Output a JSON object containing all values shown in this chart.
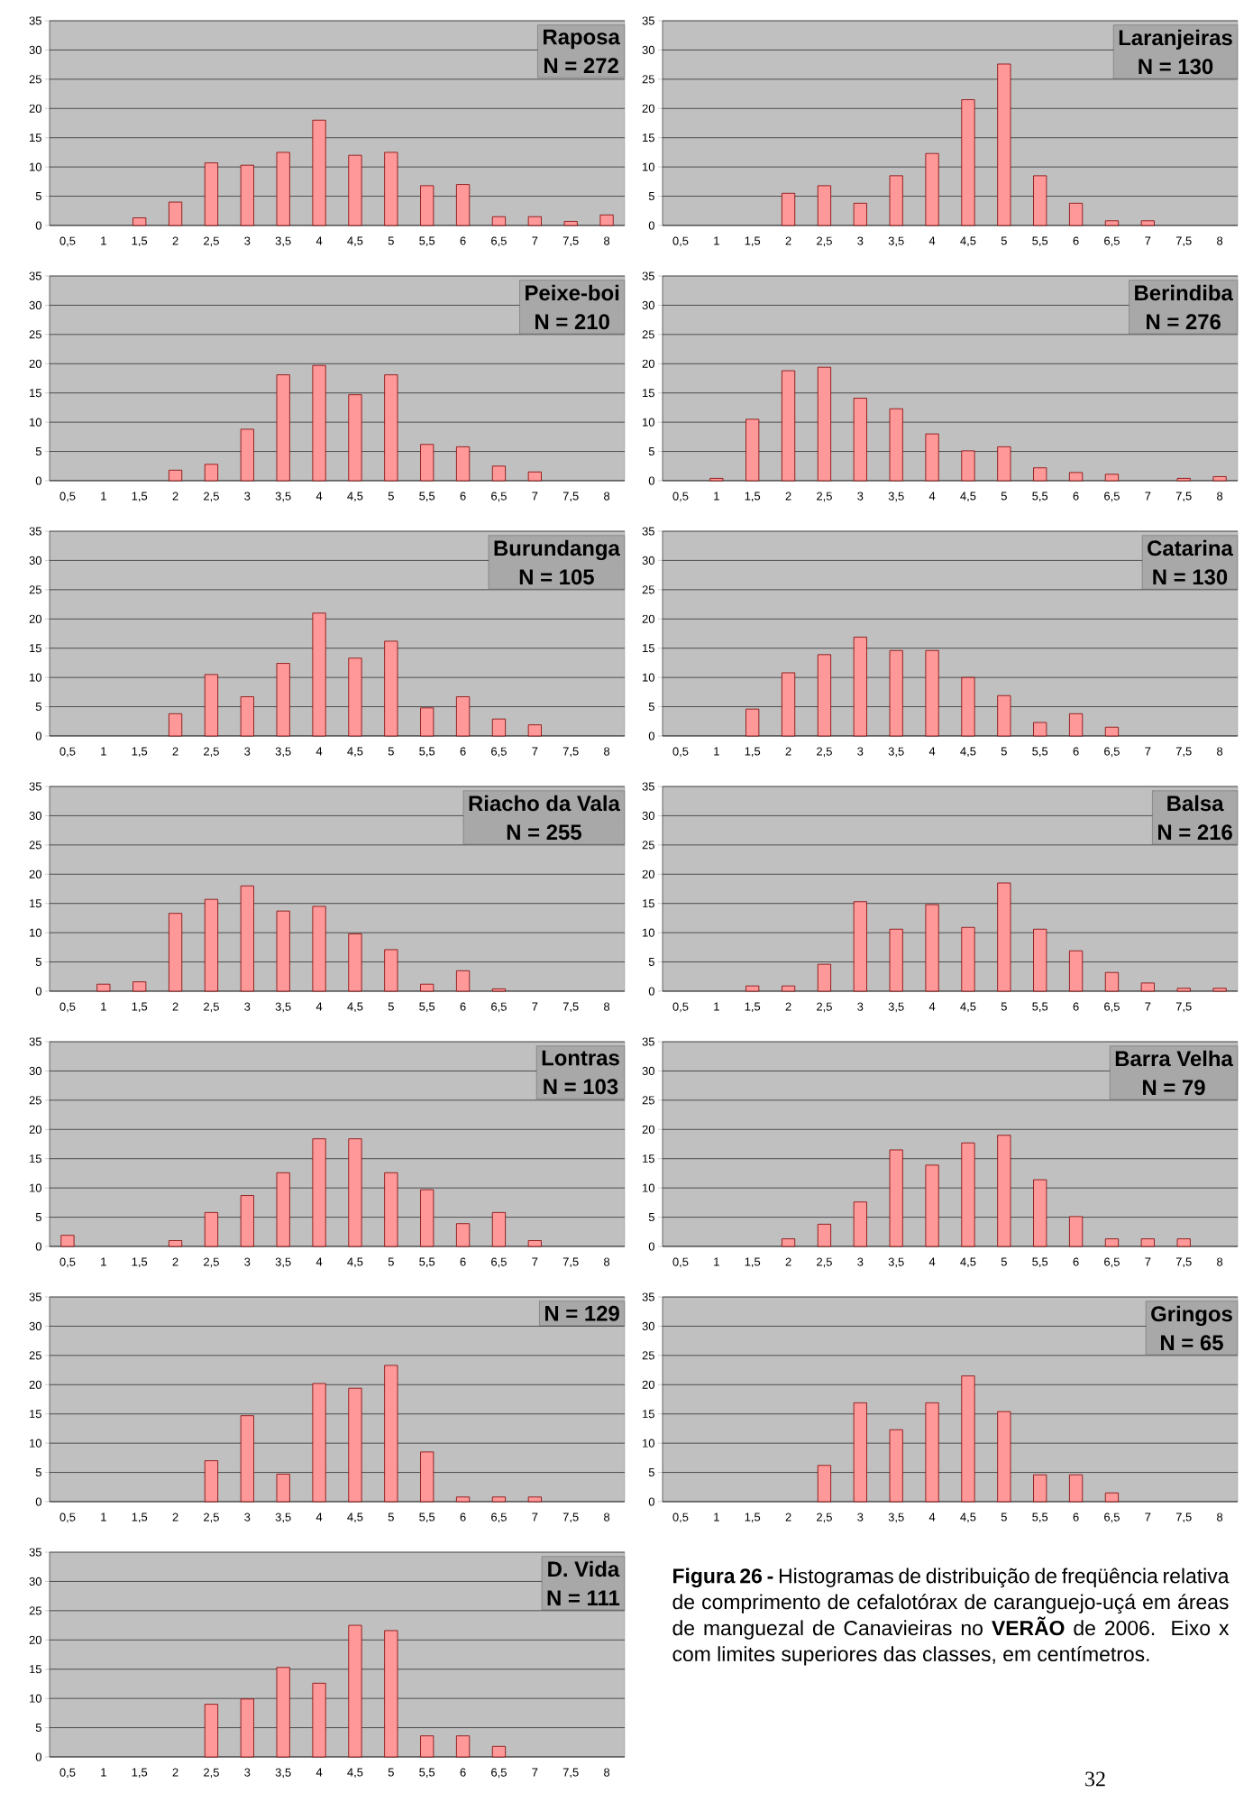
{
  "chart_data": [
    {
      "type": "bar",
      "title": "Raposa",
      "subtitle": "N = 272",
      "categories": [
        "0,5",
        "1",
        "1,5",
        "2",
        "2,5",
        "3",
        "3,5",
        "4",
        "4,5",
        "5",
        "5,5",
        "6",
        "6,5",
        "7",
        "7,5",
        "8"
      ],
      "values": [
        0,
        0,
        1.3,
        4,
        10.7,
        10.3,
        12.5,
        18,
        12,
        12.5,
        6.8,
        7,
        1.5,
        1.5,
        0.7,
        1.8
      ],
      "color": "#ff9999",
      "ylim": [
        0,
        35
      ],
      "yticks": [
        0,
        5,
        10,
        15,
        20,
        25,
        30,
        35
      ],
      "grid": "y"
    },
    {
      "type": "bar",
      "title": "Laranjeiras",
      "subtitle": "N = 130",
      "categories": [
        "0,5",
        "1",
        "1,5",
        "2",
        "2,5",
        "3",
        "3,5",
        "4",
        "4,5",
        "5",
        "5,5",
        "6",
        "6,5",
        "7",
        "7,5",
        "8"
      ],
      "values": [
        0,
        0,
        0,
        5.5,
        6.8,
        3.8,
        8.5,
        12.3,
        21.5,
        27.6,
        8.5,
        3.8,
        0.8,
        0.8,
        0,
        0
      ],
      "color": "#ff9999",
      "ylim": [
        0,
        35
      ],
      "yticks": [
        0,
        5,
        10,
        15,
        20,
        25,
        30,
        35
      ],
      "grid": "y"
    },
    {
      "type": "bar",
      "title": "Peixe-boi",
      "subtitle": "N = 210",
      "categories": [
        "0,5",
        "1",
        "1,5",
        "2",
        "2,5",
        "3",
        "3,5",
        "4",
        "4,5",
        "5",
        "5,5",
        "6",
        "6,5",
        "7",
        "7,5",
        "8"
      ],
      "values": [
        0,
        0,
        0,
        1.8,
        2.8,
        8.8,
        18.1,
        19.7,
        14.7,
        18.1,
        6.2,
        5.8,
        2.5,
        1.5,
        0,
        0
      ],
      "color": "#ff9999",
      "ylim": [
        0,
        35
      ],
      "yticks": [
        0,
        5,
        10,
        15,
        20,
        25,
        30,
        35
      ],
      "grid": "y"
    },
    {
      "type": "bar",
      "title": "Berindiba",
      "subtitle": "N = 276",
      "categories": [
        "0,5",
        "1",
        "1,5",
        "2",
        "2,5",
        "3",
        "3,5",
        "4",
        "4,5",
        "5",
        "5,5",
        "6",
        "6,5",
        "7",
        "7,5",
        "8"
      ],
      "values": [
        0,
        0.4,
        10.5,
        18.8,
        19.4,
        14.1,
        12.3,
        8,
        5.1,
        5.8,
        2.2,
        1.4,
        1.1,
        0,
        0.4,
        0.7
      ],
      "color": "#ff9999",
      "ylim": [
        0,
        35
      ],
      "yticks": [
        0,
        5,
        10,
        15,
        20,
        25,
        30,
        35
      ],
      "grid": "y"
    },
    {
      "type": "bar",
      "title": "Burundanga",
      "subtitle": "N = 105",
      "categories": [
        "0,5",
        "1",
        "1,5",
        "2",
        "2,5",
        "3",
        "3,5",
        "4",
        "4,5",
        "5",
        "5,5",
        "6",
        "6,5",
        "7",
        "7,5",
        "8"
      ],
      "values": [
        0,
        0,
        0,
        3.8,
        10.5,
        6.7,
        12.4,
        21,
        13.3,
        16.2,
        4.8,
        6.7,
        2.9,
        1.9,
        0,
        0
      ],
      "color": "#ff9999",
      "ylim": [
        0,
        35
      ],
      "yticks": [
        0,
        5,
        10,
        15,
        20,
        25,
        30,
        35
      ],
      "grid": "y"
    },
    {
      "type": "bar",
      "title": "Catarina",
      "subtitle": "N = 130",
      "categories": [
        "0,5",
        "1",
        "1,5",
        "2",
        "2,5",
        "3",
        "3,5",
        "4",
        "4,5",
        "5",
        "5,5",
        "6",
        "6,5",
        "7",
        "7,5",
        "8"
      ],
      "values": [
        0,
        0,
        4.6,
        10.8,
        13.9,
        16.9,
        14.6,
        14.6,
        10,
        6.9,
        2.3,
        3.8,
        1.5,
        0,
        0,
        0
      ],
      "color": "#ff9999",
      "ylim": [
        0,
        35
      ],
      "yticks": [
        0,
        5,
        10,
        15,
        20,
        25,
        30,
        35
      ],
      "grid": "y"
    },
    {
      "type": "bar",
      "title": "Riacho da Vala",
      "subtitle": "N = 255",
      "categories": [
        "0,5",
        "1",
        "1,5",
        "2",
        "2,5",
        "3",
        "3,5",
        "4",
        "4,5",
        "5",
        "5,5",
        "6",
        "6,5",
        "7",
        "7,5",
        "8"
      ],
      "values": [
        0,
        1.2,
        1.6,
        13.3,
        15.7,
        18,
        13.7,
        14.5,
        9.8,
        7.1,
        1.2,
        3.5,
        0.4,
        0,
        0,
        0
      ],
      "color": "#ff9999",
      "ylim": [
        0,
        35
      ],
      "yticks": [
        0,
        5,
        10,
        15,
        20,
        25,
        30,
        35
      ],
      "grid": "y"
    },
    {
      "type": "bar",
      "title": "Balsa",
      "subtitle": "N = 216",
      "categories": [
        "0,5",
        "1",
        "1,5",
        "2",
        "2,5",
        "3",
        "3,5",
        "4",
        "4,5",
        "5",
        "5,5",
        "6",
        "6,5",
        "7",
        "7,5",
        null
      ],
      "values": [
        0,
        0,
        0.9,
        0.9,
        4.6,
        15.3,
        10.6,
        14.8,
        10.9,
        18.5,
        10.6,
        6.9,
        3.2,
        1.4,
        0.5,
        0.5
      ],
      "color": "#ff9999",
      "ylim": [
        0,
        35
      ],
      "yticks": [
        0,
        5,
        10,
        15,
        20,
        25,
        30,
        35
      ],
      "grid": "y"
    },
    {
      "type": "bar",
      "title": "Lontras",
      "subtitle": "N = 103",
      "categories": [
        "0,5",
        "1",
        "1,5",
        "2",
        "2,5",
        "3",
        "3,5",
        "4",
        "4,5",
        "5",
        "5,5",
        "6",
        "6,5",
        "7",
        "7,5",
        "8"
      ],
      "values": [
        1.9,
        0,
        0,
        1,
        5.8,
        8.7,
        12.6,
        18.4,
        18.4,
        12.6,
        9.7,
        3.9,
        5.8,
        1,
        0,
        0
      ],
      "color": "#ff9999",
      "ylim": [
        0,
        35
      ],
      "yticks": [
        0,
        5,
        10,
        15,
        20,
        25,
        30,
        35
      ],
      "grid": "y"
    },
    {
      "type": "bar",
      "title": "Barra Velha",
      "subtitle": "N = 79",
      "categories": [
        "0,5",
        "1",
        "1,5",
        "2",
        "2,5",
        "3",
        "3,5",
        "4",
        "4,5",
        "5",
        "5,5",
        "6",
        "6,5",
        "7",
        "7,5",
        "8"
      ],
      "values": [
        0,
        0,
        0,
        1.3,
        3.8,
        7.6,
        16.5,
        13.9,
        17.7,
        19,
        11.4,
        5.1,
        1.3,
        1.3,
        1.3,
        0
      ],
      "color": "#ff9999",
      "ylim": [
        0,
        35
      ],
      "yticks": [
        0,
        5,
        10,
        15,
        20,
        25,
        30,
        35
      ],
      "grid": "y"
    },
    {
      "type": "bar",
      "subtitle": "N = 129",
      "categories": [
        "0,5",
        "1",
        "1,5",
        "2",
        "2,5",
        "3",
        "3,5",
        "4",
        "4,5",
        "5",
        "5,5",
        "6",
        "6,5",
        "7",
        "7,5",
        "8"
      ],
      "values": [
        0,
        0,
        0,
        0,
        7,
        14.7,
        4.7,
        20.2,
        19.4,
        23.3,
        8.5,
        0.8,
        0.8,
        0.8,
        0,
        0
      ],
      "color": "#ff9999",
      "ylim": [
        0,
        35
      ],
      "yticks": [
        0,
        5,
        10,
        15,
        20,
        25,
        30,
        35
      ],
      "grid": "y"
    },
    {
      "type": "bar",
      "title": "Gringos",
      "subtitle": "N = 65",
      "categories": [
        "0,5",
        "1",
        "1,5",
        "2",
        "2,5",
        "3",
        "3,5",
        "4",
        "4,5",
        "5",
        "5,5",
        "6",
        "6,5",
        "7",
        "7,5",
        "8"
      ],
      "values": [
        0,
        0,
        0,
        0,
        6.2,
        16.9,
        12.3,
        16.9,
        21.5,
        15.4,
        4.6,
        4.6,
        1.5,
        0,
        0,
        0
      ],
      "color": "#ff9999",
      "ylim": [
        0,
        35
      ],
      "yticks": [
        0,
        5,
        10,
        15,
        20,
        25,
        30,
        35
      ],
      "grid": "y"
    },
    {
      "type": "bar",
      "title": "D. Vida",
      "subtitle": "N = 111",
      "categories": [
        "0,5",
        "1",
        "1,5",
        "2",
        "2,5",
        "3",
        "3,5",
        "4",
        "4,5",
        "5",
        "5,5",
        "6",
        "6,5",
        "7",
        "7,5",
        "8"
      ],
      "values": [
        0,
        0,
        0,
        0,
        9,
        9.9,
        15.3,
        12.6,
        22.5,
        21.6,
        3.6,
        3.6,
        1.8,
        0,
        0,
        0
      ],
      "color": "#ff9999",
      "ylim": [
        0,
        35
      ],
      "yticks": [
        0,
        5,
        10,
        15,
        20,
        25,
        30,
        35
      ],
      "grid": "y"
    },
    {
      "type": "other",
      "annotations": [
        "**Figura 26 -** Histogramas de distribuição de freqüência relativa de comprimento de cefalotórax de caranguejo-uçá em áreas de manguezal de Canavieiras no **VERÃO** de 2006. Eixo x com limites superiores das classes, em centímetros.",
        "32"
      ]
    }
  ]
}
